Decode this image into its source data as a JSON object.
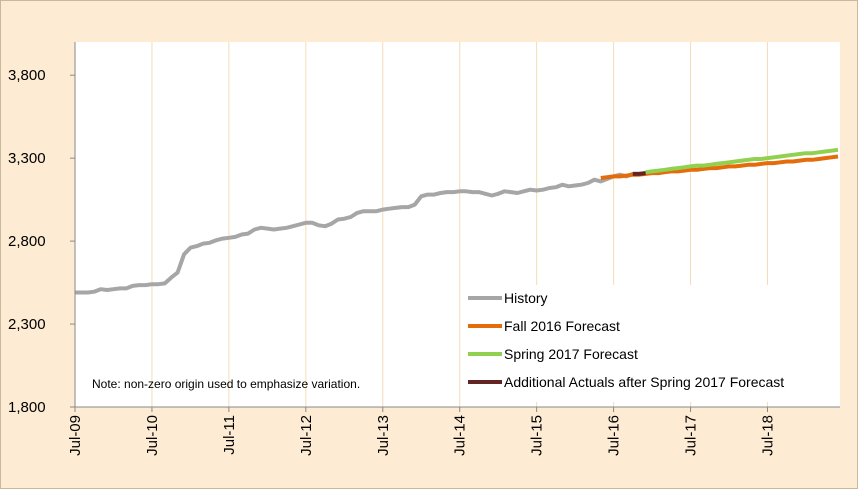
{
  "chart_data": {
    "type": "line",
    "note": "Note: non-zero origin used to emphasize variation.",
    "categories": [
      "Jul-09",
      null,
      null,
      null,
      null,
      null,
      null,
      null,
      null,
      null,
      null,
      null,
      "Jul-10",
      null,
      null,
      null,
      null,
      null,
      null,
      null,
      null,
      null,
      null,
      null,
      "Jul-11",
      null,
      null,
      null,
      null,
      null,
      null,
      null,
      null,
      null,
      null,
      null,
      "Jul-12",
      null,
      null,
      null,
      null,
      null,
      null,
      null,
      null,
      null,
      null,
      null,
      "Jul-13",
      null,
      null,
      null,
      null,
      null,
      null,
      null,
      null,
      null,
      null,
      null,
      "Jul-14",
      null,
      null,
      null,
      null,
      null,
      null,
      null,
      null,
      null,
      null,
      null,
      "Jul-15",
      null,
      null,
      null,
      null,
      null,
      null,
      null,
      null,
      null,
      null,
      null,
      "Jul-16",
      null,
      null,
      null,
      null,
      null,
      null,
      null,
      null,
      null,
      null,
      null,
      "Jul-17",
      null,
      null,
      null,
      null,
      null,
      null,
      null,
      null,
      null,
      null,
      null,
      "Jul-18",
      null,
      null,
      null,
      null,
      null,
      null,
      null,
      null,
      null,
      null,
      null
    ],
    "series": [
      {
        "name": "History",
        "color": "#a6a6a6",
        "values": [
          2490,
          2490,
          2490,
          2495,
          2510,
          2505,
          2510,
          2515,
          2515,
          2530,
          2535,
          2535,
          2540,
          2540,
          2545,
          2580,
          2610,
          2720,
          2760,
          2770,
          2785,
          2790,
          2805,
          2815,
          2820,
          2825,
          2840,
          2845,
          2870,
          2880,
          2875,
          2870,
          2875,
          2880,
          2890,
          2900,
          2910,
          2910,
          2895,
          2890,
          2905,
          2930,
          2935,
          2945,
          2970,
          2980,
          2980,
          2980,
          2990,
          2995,
          3000,
          3005,
          3005,
          3020,
          3070,
          3080,
          3080,
          3090,
          3095,
          3095,
          3100,
          3100,
          3095,
          3095,
          3085,
          3075,
          3085,
          3100,
          3095,
          3090,
          3100,
          3110,
          3105,
          3110,
          3120,
          3125,
          3140,
          3130,
          3135,
          3140,
          3150,
          3170,
          3160,
          3175,
          3190,
          3200,
          3190,
          3205,
          3205,
          3210,
          null,
          null,
          null,
          null,
          null,
          null,
          null,
          null,
          null,
          null,
          null,
          null,
          null,
          null,
          null,
          null,
          null,
          null,
          null,
          null,
          null,
          null,
          null,
          null,
          null,
          null,
          null,
          null,
          null,
          null
        ]
      },
      {
        "name": "Fall 2016 Forecast",
        "color": "#e46c0a",
        "values": [
          null,
          null,
          null,
          null,
          null,
          null,
          null,
          null,
          null,
          null,
          null,
          null,
          null,
          null,
          null,
          null,
          null,
          null,
          null,
          null,
          null,
          null,
          null,
          null,
          null,
          null,
          null,
          null,
          null,
          null,
          null,
          null,
          null,
          null,
          null,
          null,
          null,
          null,
          null,
          null,
          null,
          null,
          null,
          null,
          null,
          null,
          null,
          null,
          null,
          null,
          null,
          null,
          null,
          null,
          null,
          null,
          null,
          null,
          null,
          null,
          null,
          null,
          null,
          null,
          null,
          null,
          null,
          null,
          null,
          null,
          null,
          null,
          null,
          null,
          null,
          null,
          null,
          null,
          null,
          null,
          null,
          null,
          3180,
          3185,
          3190,
          3190,
          3195,
          3200,
          3200,
          3205,
          3210,
          3210,
          3215,
          3220,
          3220,
          3225,
          3230,
          3230,
          3235,
          3240,
          3240,
          3245,
          3250,
          3250,
          3255,
          3260,
          3260,
          3265,
          3270,
          3270,
          3275,
          3280,
          3280,
          3285,
          3290,
          3290,
          3295,
          3300,
          3305,
          3310
        ]
      },
      {
        "name": "Spring 2017 Forecast",
        "color": "#92d050",
        "values": [
          null,
          null,
          null,
          null,
          null,
          null,
          null,
          null,
          null,
          null,
          null,
          null,
          null,
          null,
          null,
          null,
          null,
          null,
          null,
          null,
          null,
          null,
          null,
          null,
          null,
          null,
          null,
          null,
          null,
          null,
          null,
          null,
          null,
          null,
          null,
          null,
          null,
          null,
          null,
          null,
          null,
          null,
          null,
          null,
          null,
          null,
          null,
          null,
          null,
          null,
          null,
          null,
          null,
          null,
          null,
          null,
          null,
          null,
          null,
          null,
          null,
          null,
          null,
          null,
          null,
          null,
          null,
          null,
          null,
          null,
          null,
          null,
          null,
          null,
          null,
          null,
          null,
          null,
          null,
          null,
          null,
          null,
          null,
          null,
          null,
          null,
          null,
          null,
          null,
          3215,
          3220,
          3225,
          3230,
          3235,
          3240,
          3245,
          3250,
          3255,
          3255,
          3260,
          3265,
          3270,
          3275,
          3280,
          3285,
          3290,
          3295,
          3295,
          3300,
          3305,
          3310,
          3315,
          3320,
          3325,
          3330,
          3330,
          3335,
          3340,
          3345,
          3350
        ]
      },
      {
        "name": "Additional Actuals after Spring 2017 Forecast",
        "color": "#632523",
        "values": [
          null,
          null,
          null,
          null,
          null,
          null,
          null,
          null,
          null,
          null,
          null,
          null,
          null,
          null,
          null,
          null,
          null,
          null,
          null,
          null,
          null,
          null,
          null,
          null,
          null,
          null,
          null,
          null,
          null,
          null,
          null,
          null,
          null,
          null,
          null,
          null,
          null,
          null,
          null,
          null,
          null,
          null,
          null,
          null,
          null,
          null,
          null,
          null,
          null,
          null,
          null,
          null,
          null,
          null,
          null,
          null,
          null,
          null,
          null,
          null,
          null,
          null,
          null,
          null,
          null,
          null,
          null,
          null,
          null,
          null,
          null,
          null,
          null,
          null,
          null,
          null,
          null,
          null,
          null,
          null,
          null,
          null,
          null,
          null,
          null,
          null,
          null,
          3205,
          3205,
          3210,
          null,
          null,
          null,
          null,
          null,
          null,
          null,
          null,
          null,
          null,
          null,
          null,
          null,
          null,
          null,
          null,
          null,
          null,
          null,
          null,
          null,
          null,
          null,
          null,
          null,
          null,
          null,
          null,
          null,
          null
        ]
      }
    ],
    "ylim": [
      1800,
      4000
    ],
    "yticks": [
      {
        "value": 1800,
        "label": "1,800"
      },
      {
        "value": 2300,
        "label": "2,300"
      },
      {
        "value": 2800,
        "label": "2,800"
      },
      {
        "value": 3300,
        "label": "3,300"
      },
      {
        "value": 3800,
        "label": "3,800"
      }
    ],
    "grid": "vertical",
    "legend": "lower right"
  }
}
